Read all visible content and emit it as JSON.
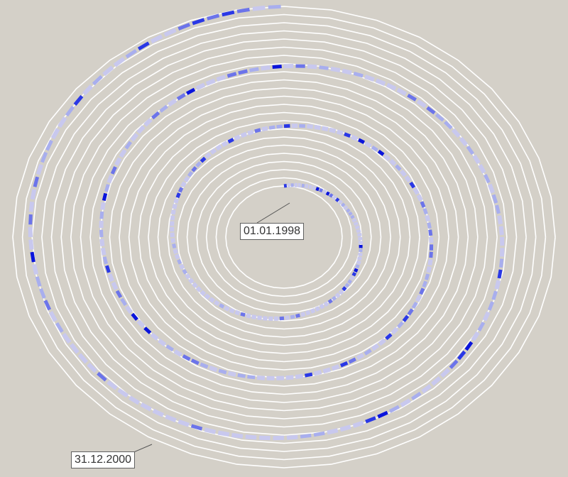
{
  "chart_data": {
    "type": "spiral-timeline",
    "start_date_label": "01.01.1998",
    "end_date_label": "31.12.2000",
    "colors": {
      "background": "#d4d0c8",
      "track": "#ffffff",
      "base_segment": "#c8c8ee",
      "low": "#a8aeee",
      "medium": "#6c74ea",
      "high": "#2a38e6",
      "max": "#0a14dc"
    }
  }
}
